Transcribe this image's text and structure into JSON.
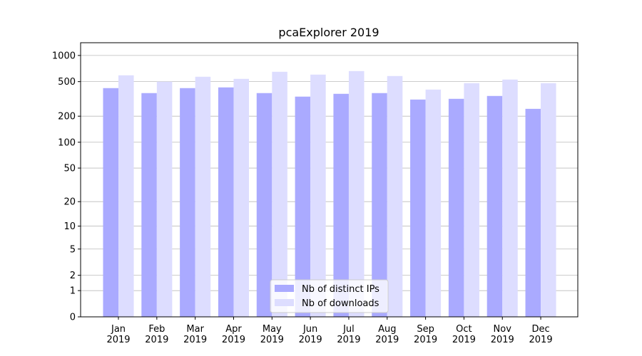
{
  "chart_data": {
    "type": "bar",
    "title": "pcaExplorer 2019",
    "categories": [
      [
        "Jan",
        "2019"
      ],
      [
        "Feb",
        "2019"
      ],
      [
        "Mar",
        "2019"
      ],
      [
        "Apr",
        "2019"
      ],
      [
        "May",
        "2019"
      ],
      [
        "Jun",
        "2019"
      ],
      [
        "Jul",
        "2019"
      ],
      [
        "Aug",
        "2019"
      ],
      [
        "Sep",
        "2019"
      ],
      [
        "Oct",
        "2019"
      ],
      [
        "Nov",
        "2019"
      ],
      [
        "Dec",
        "2019"
      ]
    ],
    "series": [
      {
        "name": "Nb of distinct IPs",
        "color": "#aaaaff",
        "values": [
          421,
          369,
          421,
          429,
          369,
          336,
          362,
          369,
          311,
          317,
          342,
          243
        ]
      },
      {
        "name": "Nb of downloads",
        "color": "#ddddff",
        "values": [
          591,
          499,
          569,
          538,
          649,
          602,
          661,
          580,
          405,
          480,
          528,
          480
        ]
      }
    ],
    "yscale": "log1p",
    "ylim": [
      0,
      1400
    ],
    "yticks": [
      0,
      1,
      2,
      5,
      10,
      20,
      50,
      100,
      200,
      500,
      1000
    ],
    "grid": true,
    "legend": "lower center"
  }
}
